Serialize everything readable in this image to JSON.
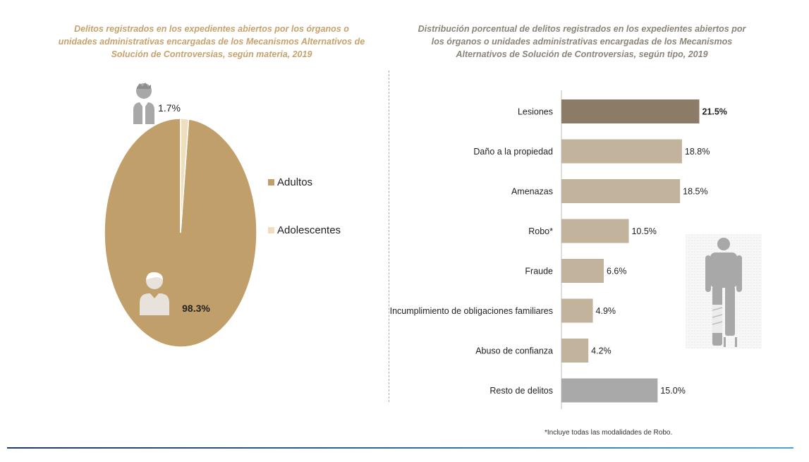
{
  "chart_data": [
    {
      "type": "pie",
      "title": "Delitos registrados en los expedientes abiertos por los órganos o unidades administrativas encargadas de los Mecanismos Alternativos de Solución de Controversias, según materia, 2019",
      "slices": [
        {
          "name": "Adultos",
          "value": 98.3,
          "label": "98.3%",
          "color": "#c19f6a"
        },
        {
          "name": "Adolescentes",
          "value": 1.7,
          "label": "1.7%",
          "color": "#f0dfbf"
        }
      ],
      "legend": "right"
    },
    {
      "type": "bar",
      "orientation": "horizontal",
      "title": "Distribución porcentual de delitos registrados en los expedientes abiertos por los órganos o unidades administrativas encargadas de los Mecanismos Alternativos de Solución de Controversias, según tipo, 2019",
      "categories": [
        "Lesiones",
        "Daño a la propiedad",
        "Amenazas",
        "Robo*",
        "Fraude",
        "Incumplimiento de obligaciones familiares",
        "Abuso de confianza",
        "Resto de delitos"
      ],
      "values": [
        21.5,
        18.8,
        18.5,
        10.5,
        6.6,
        4.9,
        4.2,
        15.0
      ],
      "labels": [
        "21.5%",
        "18.8%",
        "18.5%",
        "10.5%",
        "6.6%",
        "4.9%",
        "4.2%",
        "15.0%"
      ],
      "colors": [
        "#8c7b67",
        "#c2b49c",
        "#c2b49c",
        "#c2b49c",
        "#c2b49c",
        "#c2b49c",
        "#c2b49c",
        "#a9a9a9"
      ],
      "xlim": [
        0,
        22
      ],
      "footnote": "*Incluye todas las modalidades de Robo."
    }
  ],
  "icons": {
    "child": "child-person-icon",
    "adult": "adult-person-icon",
    "injured": "injured-person-icon"
  }
}
